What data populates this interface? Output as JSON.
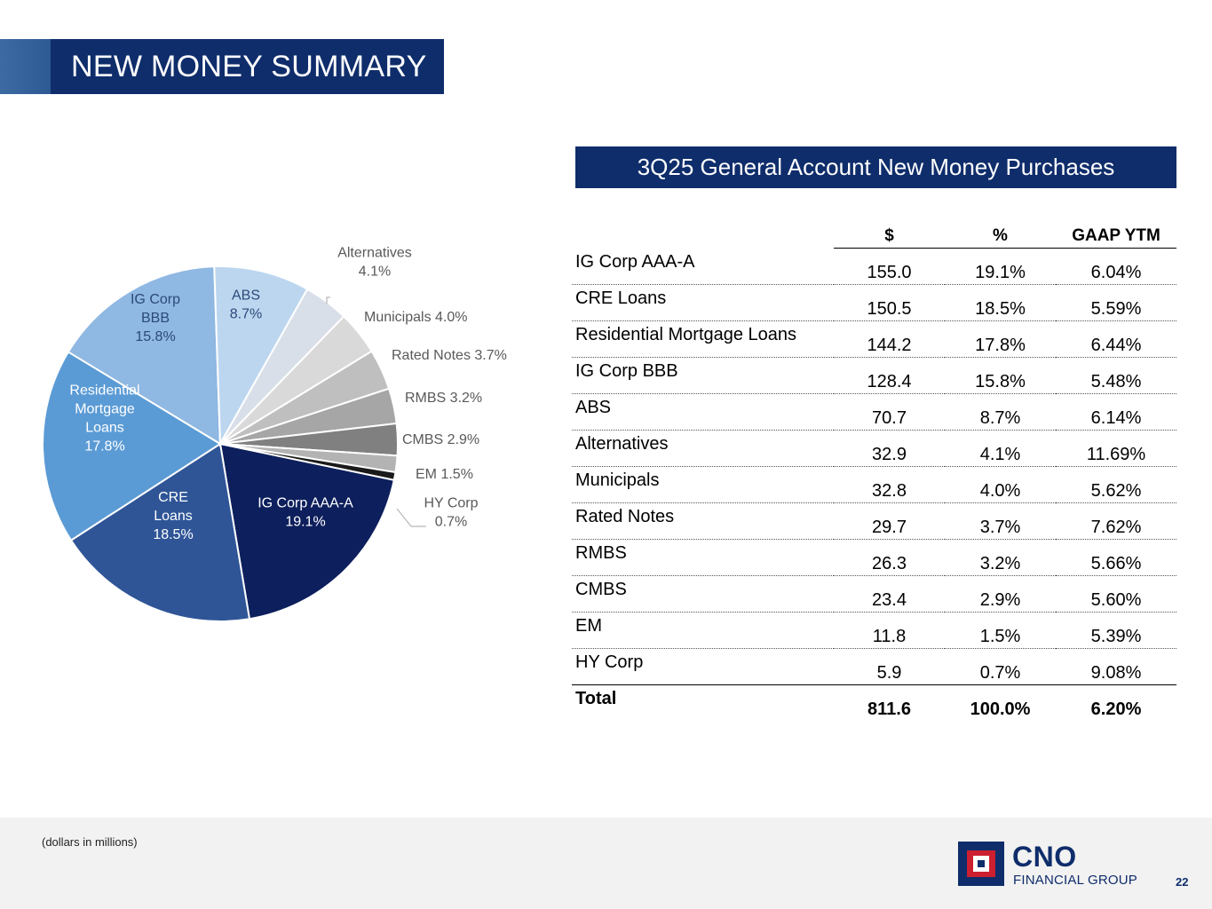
{
  "slide_title": "NEW MONEY SUMMARY",
  "table_title": "3Q25 General Account New Money Purchases",
  "table": {
    "headers": [
      "$",
      "%",
      "GAAP YTM"
    ],
    "rows": [
      {
        "name": "IG Corp AAA-A",
        "usd": "155.0",
        "pct": "19.1%",
        "ytm": "6.04%"
      },
      {
        "name": "CRE Loans",
        "usd": "150.5",
        "pct": "18.5%",
        "ytm": "5.59%"
      },
      {
        "name": "Residential Mortgage Loans",
        "usd": "144.2",
        "pct": "17.8%",
        "ytm": "6.44%"
      },
      {
        "name": "IG Corp BBB",
        "usd": "128.4",
        "pct": "15.8%",
        "ytm": "5.48%"
      },
      {
        "name": "ABS",
        "usd": "70.7",
        "pct": "8.7%",
        "ytm": "6.14%"
      },
      {
        "name": "Alternatives",
        "usd": "32.9",
        "pct": "4.1%",
        "ytm": "11.69%"
      },
      {
        "name": "Municipals",
        "usd": "32.8",
        "pct": "4.0%",
        "ytm": "5.62%"
      },
      {
        "name": "Rated Notes",
        "usd": "29.7",
        "pct": "3.7%",
        "ytm": "7.62%"
      },
      {
        "name": "RMBS",
        "usd": "26.3",
        "pct": "3.2%",
        "ytm": "5.66%"
      },
      {
        "name": "CMBS",
        "usd": "23.4",
        "pct": "2.9%",
        "ytm": "5.60%"
      },
      {
        "name": "EM",
        "usd": "11.8",
        "pct": "1.5%",
        "ytm": "5.39%"
      },
      {
        "name": "HY Corp",
        "usd": "5.9",
        "pct": "0.7%",
        "ytm": "9.08%"
      }
    ],
    "total": {
      "name": "Total",
      "usd": "811.6",
      "pct": "100.0%",
      "ytm": "6.20%"
    }
  },
  "chart_data": {
    "type": "pie",
    "slices": [
      {
        "label": "IG Corp AAA-A",
        "value": 19.1,
        "display": "IG Corp AAA-A\n19.1%",
        "color": "#0d1f5c"
      },
      {
        "label": "CRE Loans",
        "value": 18.5,
        "display": "CRE\nLoans\n18.5%",
        "color": "#2f5597"
      },
      {
        "label": "Residential Mortgage Loans",
        "value": 17.8,
        "display": "Residential\nMortgage\nLoans\n17.8%",
        "color": "#5b9bd5"
      },
      {
        "label": "IG Corp BBB",
        "value": 15.8,
        "display": "IG Corp\nBBB\n15.8%",
        "color": "#8fb8e2"
      },
      {
        "label": "ABS",
        "value": 8.7,
        "display": "ABS\n8.7%",
        "color": "#bcd6ef"
      },
      {
        "label": "Alternatives",
        "value": 4.1,
        "display": "Alternatives\n4.1%",
        "color": "#d9dfe8"
      },
      {
        "label": "Municipals",
        "value": 4.0,
        "display": "Municipals 4.0%",
        "color": "#d9d9d9"
      },
      {
        "label": "Rated Notes",
        "value": 3.7,
        "display": "Rated Notes 3.7%",
        "color": "#bfbfbf"
      },
      {
        "label": "RMBS",
        "value": 3.2,
        "display": "RMBS 3.2%",
        "color": "#a6a6a6"
      },
      {
        "label": "CMBS",
        "value": 2.9,
        "display": "CMBS 2.9%",
        "color": "#808080"
      },
      {
        "label": "EM",
        "value": 1.5,
        "display": "EM 1.5%",
        "color": "#b3b3b3"
      },
      {
        "label": "HY Corp",
        "value": 0.7,
        "display": "HY Corp\n0.7%",
        "color": "#1a1a1a"
      }
    ]
  },
  "footnote": "(dollars in millions)",
  "logo": {
    "name": "CNO",
    "subtitle": "FINANCIAL GROUP"
  },
  "page_number": "22"
}
